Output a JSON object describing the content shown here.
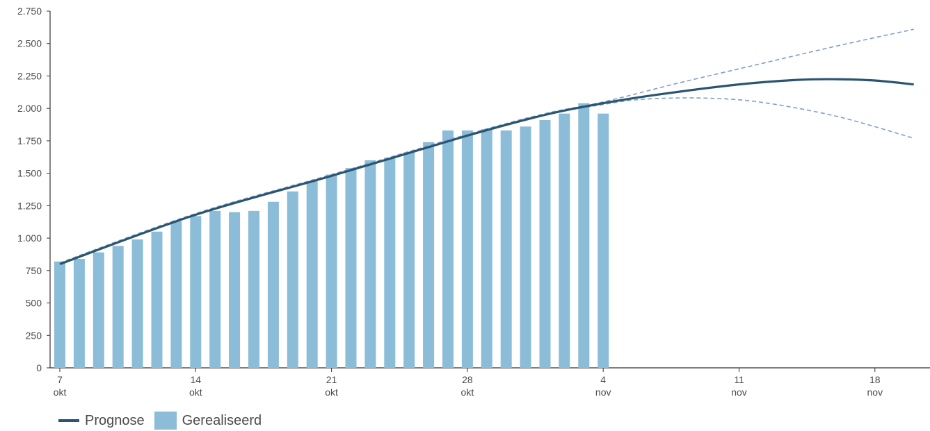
{
  "colors": {
    "forecast_line": "#2a5570",
    "realized_bars": "#8bbcd8",
    "confidence_band": "#7f9ec9",
    "axis": "#333333"
  },
  "legend": {
    "forecast_label": "Prognose",
    "realized_label": "Gerealiseerd"
  },
  "chart_data": {
    "type": "bar",
    "title": "",
    "xlabel": "",
    "ylabel": "",
    "ylim": [
      0,
      2750
    ],
    "yticks": [
      0,
      250,
      500,
      750,
      1000,
      1250,
      1500,
      1750,
      2000,
      2250,
      2500,
      2750
    ],
    "ytick_labels": [
      "0",
      "250",
      "500",
      "750",
      "1.000",
      "1.250",
      "1.500",
      "1.750",
      "2.000",
      "2.250",
      "2.500",
      "2.750"
    ],
    "xlim": [
      "2020-10-07",
      "2020-11-20"
    ],
    "xticks": [
      {
        "date": "2020-10-07",
        "day": "7",
        "month": "okt"
      },
      {
        "date": "2020-10-14",
        "day": "14",
        "month": "okt"
      },
      {
        "date": "2020-10-21",
        "day": "21",
        "month": "okt"
      },
      {
        "date": "2020-10-28",
        "day": "28",
        "month": "okt"
      },
      {
        "date": "2020-11-04",
        "day": "4",
        "month": "nov"
      },
      {
        "date": "2020-11-11",
        "day": "11",
        "month": "nov"
      },
      {
        "date": "2020-11-18",
        "day": "18",
        "month": "nov"
      }
    ],
    "grid": false,
    "legend_position": "bottom-left",
    "series": [
      {
        "name": "Gerealiseerd",
        "type": "bar",
        "x": [
          "2020-10-07",
          "2020-10-08",
          "2020-10-09",
          "2020-10-10",
          "2020-10-11",
          "2020-10-12",
          "2020-10-13",
          "2020-10-14",
          "2020-10-15",
          "2020-10-16",
          "2020-10-17",
          "2020-10-18",
          "2020-10-19",
          "2020-10-20",
          "2020-10-21",
          "2020-10-22",
          "2020-10-23",
          "2020-10-24",
          "2020-10-25",
          "2020-10-26",
          "2020-10-27",
          "2020-10-28",
          "2020-10-29",
          "2020-10-30",
          "2020-10-31",
          "2020-11-01",
          "2020-11-02",
          "2020-11-03",
          "2020-11-04"
        ],
        "values": [
          820,
          840,
          890,
          940,
          990,
          1050,
          1130,
          1170,
          1210,
          1200,
          1210,
          1280,
          1360,
          1440,
          1490,
          1540,
          1600,
          1620,
          1660,
          1740,
          1830,
          1830,
          1840,
          1830,
          1860,
          1910,
          1960,
          2040,
          1960
        ]
      },
      {
        "name": "Prognose",
        "type": "line",
        "x": [
          "2020-10-07",
          "2020-10-14",
          "2020-10-21",
          "2020-10-28",
          "2020-11-01",
          "2020-11-04",
          "2020-11-07",
          "2020-11-11",
          "2020-11-14",
          "2020-11-16",
          "2020-11-18",
          "2020-11-20"
        ],
        "values": [
          800,
          1180,
          1480,
          1790,
          1950,
          2040,
          2110,
          2185,
          2220,
          2225,
          2215,
          2185
        ]
      },
      {
        "type": "line",
        "style": "dashed",
        "x": [
          "2020-10-07",
          "2020-10-14",
          "2020-10-21",
          "2020-10-28",
          "2020-11-01",
          "2020-11-04",
          "2020-11-08",
          "2020-11-12",
          "2020-11-16",
          "2020-11-20"
        ],
        "values": [
          810,
          1190,
          1490,
          1800,
          1960,
          2050,
          2200,
          2340,
          2480,
          2610
        ]
      },
      {
        "type": "line",
        "style": "dashed",
        "x": [
          "2020-10-07",
          "2020-10-14",
          "2020-10-21",
          "2020-10-28",
          "2020-11-01",
          "2020-11-04",
          "2020-11-06",
          "2020-11-09",
          "2020-11-12",
          "2020-11-16",
          "2020-11-20"
        ],
        "values": [
          800,
          1180,
          1480,
          1790,
          1950,
          2030,
          2070,
          2080,
          2050,
          1940,
          1770
        ]
      }
    ]
  }
}
